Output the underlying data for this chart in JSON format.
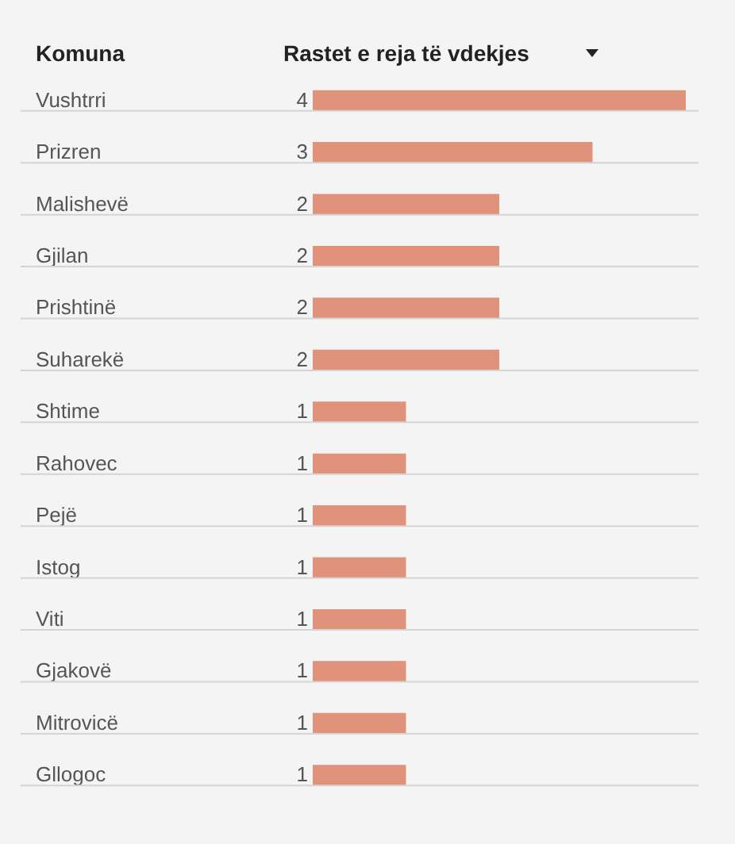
{
  "chart_data": {
    "type": "bar",
    "orientation": "horizontal",
    "ylabel": "Komuna",
    "xlabel": "Rastet e reja të vdekjes",
    "categories": [
      "Vushtrri",
      "Prizren",
      "Malishevë",
      "Gjilan",
      "Prishtinë",
      "Suharekë",
      "Shtime",
      "Rahovec",
      "Pejë",
      "Istog",
      "Viti",
      "Gjakovë",
      "Mitrovicë",
      "Gllogoc"
    ],
    "values": [
      4,
      3,
      2,
      2,
      2,
      2,
      1,
      1,
      1,
      1,
      1,
      1,
      1,
      1
    ],
    "color": "#e0937a",
    "xlim": [
      0,
      4
    ],
    "data_labels": true,
    "grid": "y"
  }
}
